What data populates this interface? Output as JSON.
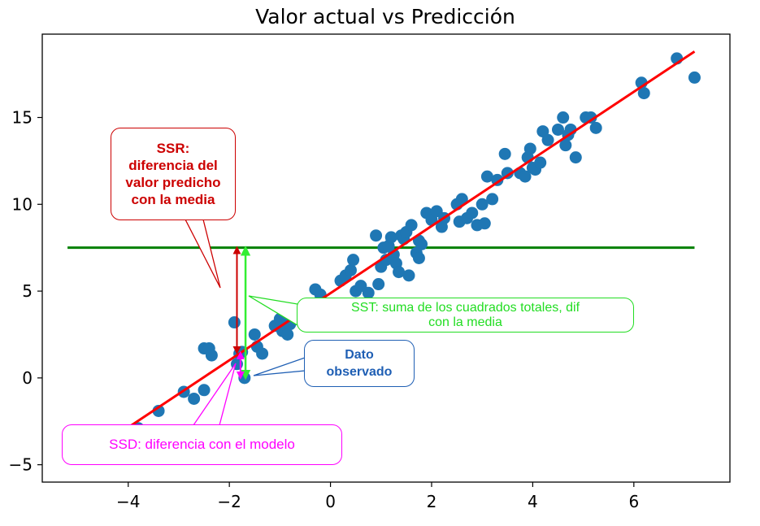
{
  "chart_data": {
    "type": "scatter",
    "title": "Valor actual vs Predicción",
    "xlabel": "",
    "ylabel": "",
    "xlim": [
      -5.7,
      7.9
    ],
    "ylim": [
      -6.0,
      19.8
    ],
    "xticks": [
      -4,
      -2,
      0,
      2,
      4,
      6
    ],
    "xtick_labels": [
      "−4",
      "−2",
      "0",
      "2",
      "4",
      "6"
    ],
    "yticks": [
      -5,
      0,
      5,
      10,
      15
    ],
    "ytick_labels": [
      "−5",
      "0",
      "5",
      "10",
      "15"
    ],
    "grid": false,
    "colors": {
      "points": "#1f77b4",
      "regression_line": "#ff0000",
      "mean_line": "#008000",
      "ssr_arrow": "#cc0000",
      "sst_arrow": "#33ee33",
      "ssd_arrow": "#ff00ff",
      "dato_border": "#1f5fb4"
    },
    "points": [
      [
        -3.8,
        -2.9
      ],
      [
        -3.4,
        -1.9
      ],
      [
        -2.9,
        -0.8
      ],
      [
        -2.7,
        -1.2
      ],
      [
        -2.5,
        -0.7
      ],
      [
        -2.5,
        1.7
      ],
      [
        -2.4,
        1.7
      ],
      [
        -2.35,
        1.3
      ],
      [
        -1.9,
        3.2
      ],
      [
        -1.85,
        0.8
      ],
      [
        -1.8,
        1.4
      ],
      [
        -1.75,
        1.5
      ],
      [
        -1.7,
        0.0
      ],
      [
        -1.5,
        2.5
      ],
      [
        -1.45,
        1.8
      ],
      [
        -1.35,
        1.4
      ],
      [
        -1.1,
        3.0
      ],
      [
        -1.0,
        3.4
      ],
      [
        -0.95,
        2.7
      ],
      [
        -0.9,
        3.6
      ],
      [
        -0.85,
        2.5
      ],
      [
        -0.8,
        3.1
      ],
      [
        -0.3,
        5.1
      ],
      [
        -0.2,
        4.8
      ],
      [
        0.2,
        5.6
      ],
      [
        0.3,
        5.9
      ],
      [
        0.4,
        6.2
      ],
      [
        0.45,
        6.8
      ],
      [
        0.5,
        5.0
      ],
      [
        0.6,
        5.3
      ],
      [
        0.75,
        4.9
      ],
      [
        0.9,
        8.2
      ],
      [
        0.95,
        5.4
      ],
      [
        1.0,
        6.4
      ],
      [
        1.05,
        7.5
      ],
      [
        1.1,
        6.8
      ],
      [
        1.15,
        7.6
      ],
      [
        1.2,
        8.1
      ],
      [
        1.25,
        7.1
      ],
      [
        1.3,
        6.6
      ],
      [
        1.35,
        6.1
      ],
      [
        1.4,
        8.2
      ],
      [
        1.45,
        8.0
      ],
      [
        1.5,
        8.4
      ],
      [
        1.55,
        5.9
      ],
      [
        1.6,
        8.8
      ],
      [
        1.7,
        7.2
      ],
      [
        1.75,
        7.9
      ],
      [
        1.75,
        6.9
      ],
      [
        1.8,
        7.7
      ],
      [
        1.9,
        9.5
      ],
      [
        2.0,
        9.1
      ],
      [
        2.1,
        9.6
      ],
      [
        2.2,
        8.7
      ],
      [
        2.25,
        9.2
      ],
      [
        2.5,
        10.0
      ],
      [
        2.55,
        9.0
      ],
      [
        2.6,
        10.3
      ],
      [
        2.7,
        9.2
      ],
      [
        2.8,
        9.5
      ],
      [
        2.9,
        8.8
      ],
      [
        3.0,
        10.0
      ],
      [
        3.05,
        8.9
      ],
      [
        3.1,
        11.6
      ],
      [
        3.2,
        10.3
      ],
      [
        3.3,
        11.4
      ],
      [
        3.45,
        12.9
      ],
      [
        3.5,
        11.8
      ],
      [
        3.75,
        11.8
      ],
      [
        3.85,
        11.6
      ],
      [
        3.9,
        12.7
      ],
      [
        3.95,
        13.2
      ],
      [
        4.0,
        12.1
      ],
      [
        4.05,
        12.0
      ],
      [
        4.15,
        12.4
      ],
      [
        4.2,
        14.2
      ],
      [
        4.3,
        13.7
      ],
      [
        4.5,
        14.3
      ],
      [
        4.6,
        15.0
      ],
      [
        4.65,
        13.4
      ],
      [
        4.7,
        14.0
      ],
      [
        4.75,
        14.3
      ],
      [
        4.85,
        12.7
      ],
      [
        5.05,
        15.0
      ],
      [
        5.15,
        15.0
      ],
      [
        5.25,
        14.4
      ],
      [
        6.15,
        17.0
      ],
      [
        6.2,
        16.4
      ],
      [
        6.85,
        18.4
      ],
      [
        7.2,
        17.3
      ]
    ],
    "regression_line": {
      "x": [
        -4.0,
        7.2
      ],
      "y": [
        -2.85,
        18.8
      ]
    },
    "mean_line": {
      "y": 7.5,
      "x": [
        -5.2,
        7.2
      ]
    },
    "arrows": {
      "ssr": {
        "x": -1.85,
        "y_from": 1.45,
        "y_to": 7.5
      },
      "sst": {
        "x": -1.68,
        "y_from": 0.0,
        "y_to": 7.5
      },
      "ssd": {
        "x": -1.78,
        "y_from": 0.0,
        "y_to": 1.45
      }
    },
    "annotations": {
      "ssr": [
        "SSR:",
        "diferencia del",
        "valor predicho",
        "con la media"
      ],
      "sst": [
        "SST: suma de los cuadrados totales, dif",
        "con la media"
      ],
      "dato": [
        "Dato",
        "observado"
      ],
      "ssd": [
        "SSD: diferencia con el modelo"
      ]
    }
  }
}
